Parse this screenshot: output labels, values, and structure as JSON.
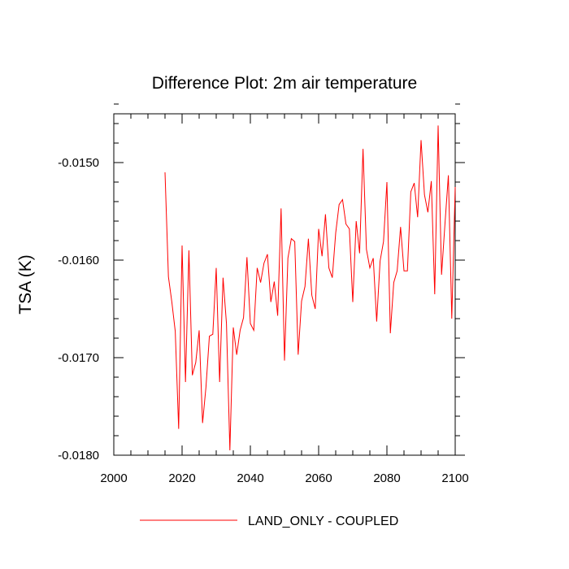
{
  "chart_data": {
    "type": "line",
    "title": "Difference Plot: 2m air temperature",
    "xlabel": "",
    "ylabel": "TSA  (K)",
    "xlim": [
      2000,
      2100
    ],
    "ylim": [
      -0.018,
      -0.0145
    ],
    "x_ticks": [
      2000,
      2020,
      2040,
      2060,
      2080,
      2100
    ],
    "x_tick_labels": [
      "2000",
      "2020",
      "2040",
      "2060",
      "2080",
      "2100"
    ],
    "y_ticks": [
      -0.018,
      -0.017,
      -0.016,
      -0.015
    ],
    "y_tick_labels": [
      "-0.0180",
      "-0.0170",
      "-0.0160",
      "-0.0150"
    ],
    "legend": {
      "position": "bottom-center",
      "entries": [
        "LAND_ONLY - COUPLED"
      ]
    },
    "color": "#ff0000",
    "series": [
      {
        "name": "LAND_ONLY - COUPLED",
        "x": [
          2015,
          2016,
          2017,
          2018,
          2019,
          2020,
          2021,
          2022,
          2023,
          2024,
          2025,
          2026,
          2027,
          2028,
          2029,
          2030,
          2031,
          2032,
          2033,
          2034,
          2035,
          2036,
          2037,
          2038,
          2039,
          2040,
          2041,
          2042,
          2043,
          2044,
          2045,
          2046,
          2047,
          2048,
          2049,
          2050,
          2051,
          2052,
          2053,
          2054,
          2055,
          2056,
          2057,
          2058,
          2059,
          2060,
          2061,
          2062,
          2063,
          2064,
          2065,
          2066,
          2067,
          2068,
          2069,
          2070,
          2071,
          2072,
          2073,
          2074,
          2075,
          2076,
          2077,
          2078,
          2079,
          2080,
          2081,
          2082,
          2083,
          2084,
          2085,
          2086,
          2087,
          2088,
          2089,
          2090,
          2091,
          2092,
          2093,
          2094,
          2095,
          2096,
          2097,
          2098,
          2099,
          2100
        ],
        "values": [
          -0.0151,
          -0.01617,
          -0.01643,
          -0.01673,
          -0.01773,
          -0.01585,
          -0.01725,
          -0.0159,
          -0.01718,
          -0.01705,
          -0.01672,
          -0.01767,
          -0.0173,
          -0.01678,
          -0.01676,
          -0.01608,
          -0.01725,
          -0.01618,
          -0.01665,
          -0.01795,
          -0.01669,
          -0.01697,
          -0.01672,
          -0.01659,
          -0.01597,
          -0.01665,
          -0.01672,
          -0.01608,
          -0.01623,
          -0.01603,
          -0.01594,
          -0.01643,
          -0.01622,
          -0.01657,
          -0.01547,
          -0.01703,
          -0.01598,
          -0.01578,
          -0.01581,
          -0.01697,
          -0.01642,
          -0.01627,
          -0.01578,
          -0.01636,
          -0.0165,
          -0.01568,
          -0.01596,
          -0.01553,
          -0.01608,
          -0.01618,
          -0.01572,
          -0.01543,
          -0.01538,
          -0.01563,
          -0.01568,
          -0.01643,
          -0.0156,
          -0.01593,
          -0.01486,
          -0.01589,
          -0.01608,
          -0.01598,
          -0.01663,
          -0.01601,
          -0.01581,
          -0.0152,
          -0.01675,
          -0.01623,
          -0.01611,
          -0.01566,
          -0.01611,
          -0.01611,
          -0.0153,
          -0.01521,
          -0.01556,
          -0.01477,
          -0.01533,
          -0.01551,
          -0.01519,
          -0.01635,
          -0.01462,
          -0.01615,
          -0.01563,
          -0.01513,
          -0.0166,
          -0.01525
        ]
      }
    ]
  }
}
